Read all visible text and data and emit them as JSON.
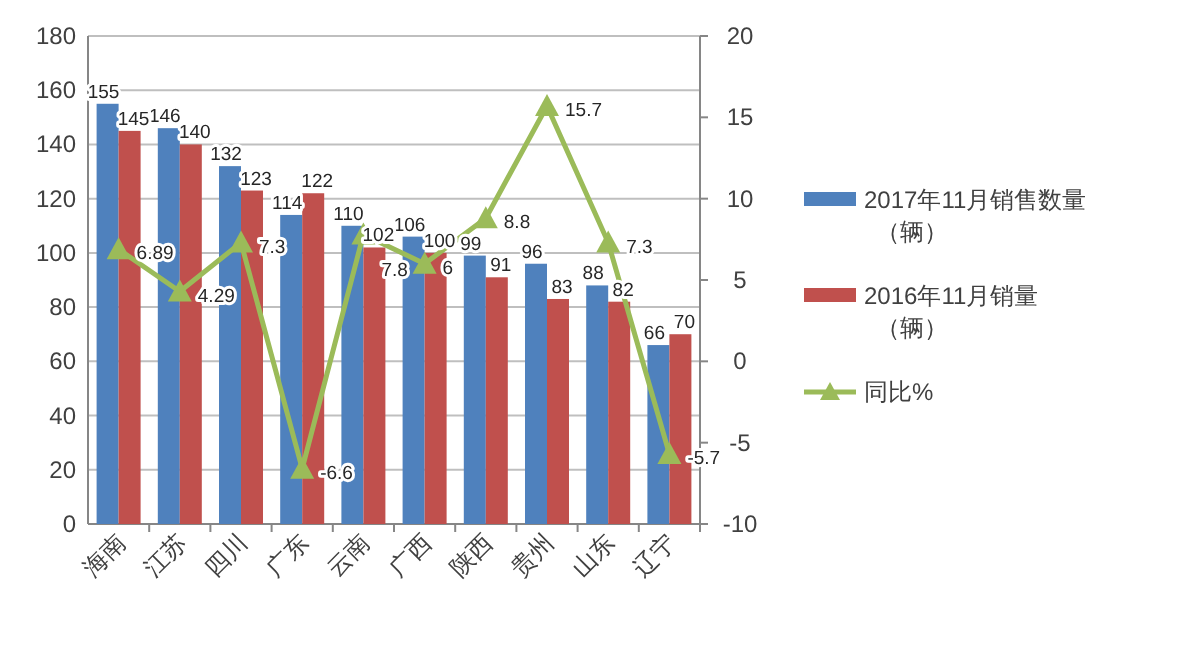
{
  "chart_data": {
    "type": "bar",
    "categories": [
      "海南",
      "江苏",
      "四川",
      "广东",
      "云南",
      "广西",
      "陕西",
      "贵州",
      "山东",
      "辽宁"
    ],
    "series": [
      {
        "name": "2017年11月销售数量（辆）",
        "color": "#4f81bd",
        "values": [
          155,
          146,
          132,
          114,
          110,
          106,
          99,
          96,
          88,
          66
        ]
      },
      {
        "name": "2016年11月销量（辆）",
        "color": "#c0504d",
        "values": [
          145,
          140,
          123,
          122,
          102,
          100,
          91,
          83,
          82,
          70
        ]
      },
      {
        "name": "同比%",
        "type": "line",
        "axis": "y2",
        "color": "#9bbb59",
        "marker": "triangle",
        "values": [
          6.89,
          4.29,
          7.3,
          -6.6,
          7.8,
          6,
          8.8,
          15.7,
          7.3,
          -5.7
        ]
      }
    ],
    "ylim": [
      0,
      180
    ],
    "yticks": [
      0,
      20,
      40,
      60,
      80,
      100,
      120,
      140,
      160,
      180
    ],
    "y2lim": [
      -10,
      20
    ],
    "y2ticks": [
      -10,
      -5,
      0,
      5,
      10,
      15,
      20
    ],
    "grid": "y",
    "legend": "right",
    "data_labels": true
  }
}
